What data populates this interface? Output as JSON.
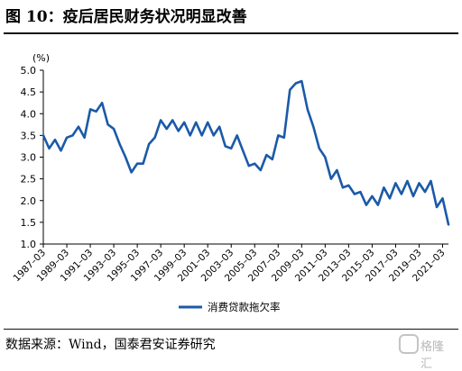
{
  "title": "图 10：疫后居民财务状况明显改善",
  "source": "数据来源：Wind，国泰君安证券研究",
  "watermark": "格隆汇",
  "chart_data": {
    "type": "line",
    "unit_label": "(%)",
    "ylim": [
      1.0,
      5.0
    ],
    "yticks": [
      "5.0",
      "4.5",
      "4.0",
      "3.5",
      "3.0",
      "2.5",
      "2.0",
      "1.5",
      "1.0"
    ],
    "xticks": [
      "1987–03",
      "1989–03",
      "1991–03",
      "1993–03",
      "1995–03",
      "1997–03",
      "1999–03",
      "2001–03",
      "2003–03",
      "2005–03",
      "2007–03",
      "2009–03",
      "2011–03",
      "2013–03",
      "2015–03",
      "2017–03",
      "2019–03",
      "2021–03"
    ],
    "grid": false,
    "legend_position": "bottom",
    "series": [
      {
        "name": "消费贷款拖欠率",
        "color": "#1a5aa8",
        "x": [
          1987.0,
          1987.5,
          1988.0,
          1988.5,
          1989.0,
          1989.5,
          1990.0,
          1990.5,
          1991.0,
          1991.5,
          1992.0,
          1992.5,
          1993.0,
          1993.5,
          1994.0,
          1994.5,
          1995.0,
          1995.5,
          1996.0,
          1996.5,
          1997.0,
          1997.5,
          1998.0,
          1998.5,
          1999.0,
          1999.5,
          2000.0,
          2000.5,
          2001.0,
          2001.5,
          2002.0,
          2002.5,
          2003.0,
          2003.5,
          2004.0,
          2004.5,
          2005.0,
          2005.5,
          2006.0,
          2006.5,
          2007.0,
          2007.5,
          2008.0,
          2008.5,
          2009.0,
          2009.5,
          2010.0,
          2010.5,
          2011.0,
          2011.5,
          2012.0,
          2012.5,
          2013.0,
          2013.5,
          2014.0,
          2014.5,
          2015.0,
          2015.5,
          2016.0,
          2016.5,
          2017.0,
          2017.5,
          2018.0,
          2018.5,
          2019.0,
          2019.5,
          2020.0,
          2020.5,
          2021.0,
          2021.5
        ],
        "values": [
          3.5,
          3.2,
          3.4,
          3.15,
          3.45,
          3.5,
          3.7,
          3.45,
          4.1,
          4.05,
          4.25,
          3.75,
          3.65,
          3.3,
          3.0,
          2.65,
          2.85,
          2.85,
          3.3,
          3.45,
          3.85,
          3.65,
          3.85,
          3.6,
          3.8,
          3.5,
          3.8,
          3.5,
          3.8,
          3.5,
          3.7,
          3.25,
          3.2,
          3.5,
          3.15,
          2.8,
          2.85,
          2.7,
          3.05,
          2.95,
          3.5,
          3.45,
          4.55,
          4.7,
          4.75,
          4.1,
          3.7,
          3.2,
          3.0,
          2.5,
          2.7,
          2.3,
          2.35,
          2.15,
          2.2,
          1.9,
          2.1,
          1.9,
          2.3,
          2.05,
          2.4,
          2.15,
          2.45,
          2.1,
          2.4,
          2.2,
          2.45,
          1.85,
          2.05,
          1.45
        ]
      }
    ]
  }
}
